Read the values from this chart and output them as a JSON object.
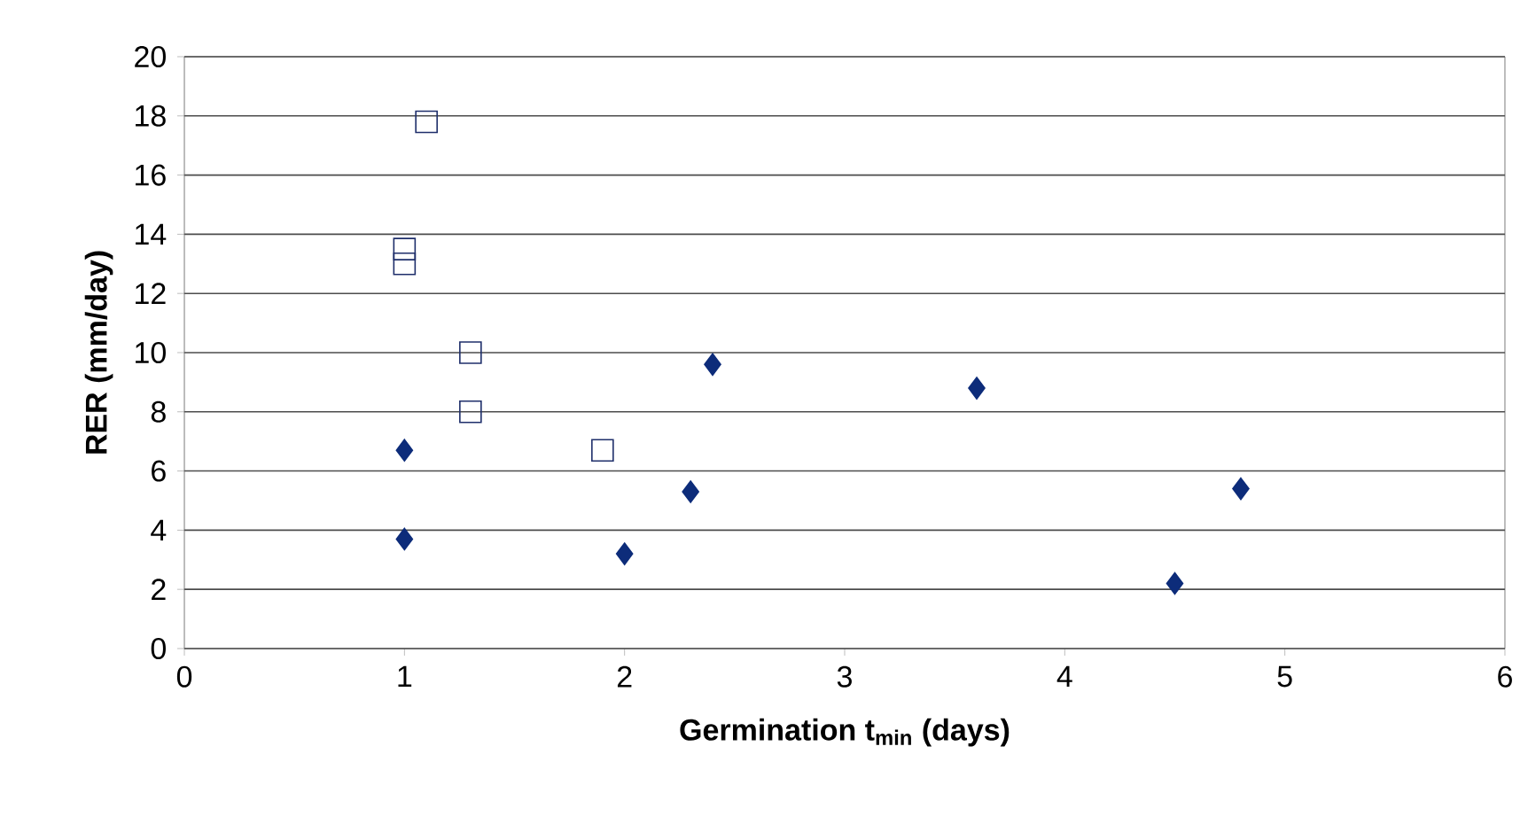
{
  "chart_data": {
    "type": "scatter",
    "xlabel": "Germination t$_{min}$ (days)",
    "ylabel": "RER (mm/day)",
    "xlim": [
      0,
      6
    ],
    "ylim": [
      0,
      20
    ],
    "xticks": [
      0,
      1,
      2,
      3,
      4,
      5,
      6
    ],
    "yticks": [
      0,
      2,
      4,
      6,
      8,
      10,
      12,
      14,
      16,
      18,
      20
    ],
    "grid": "y",
    "series": [
      {
        "color": "#1f2f6b",
        "marker": "square",
        "x": [
          1.1,
          1.0,
          1.0,
          1.3,
          1.3,
          1.9
        ],
        "values": [
          17.8,
          13.5,
          13.0,
          10.0,
          8.0,
          6.7
        ]
      },
      {
        "color": "#0d2c7a",
        "marker": "diamond",
        "x": [
          1.0,
          1.0,
          2.0,
          2.3,
          2.4,
          3.6,
          4.5,
          4.8
        ],
        "values": [
          6.7,
          3.7,
          3.2,
          5.3,
          9.6,
          8.8,
          2.2,
          5.4
        ]
      }
    ]
  }
}
